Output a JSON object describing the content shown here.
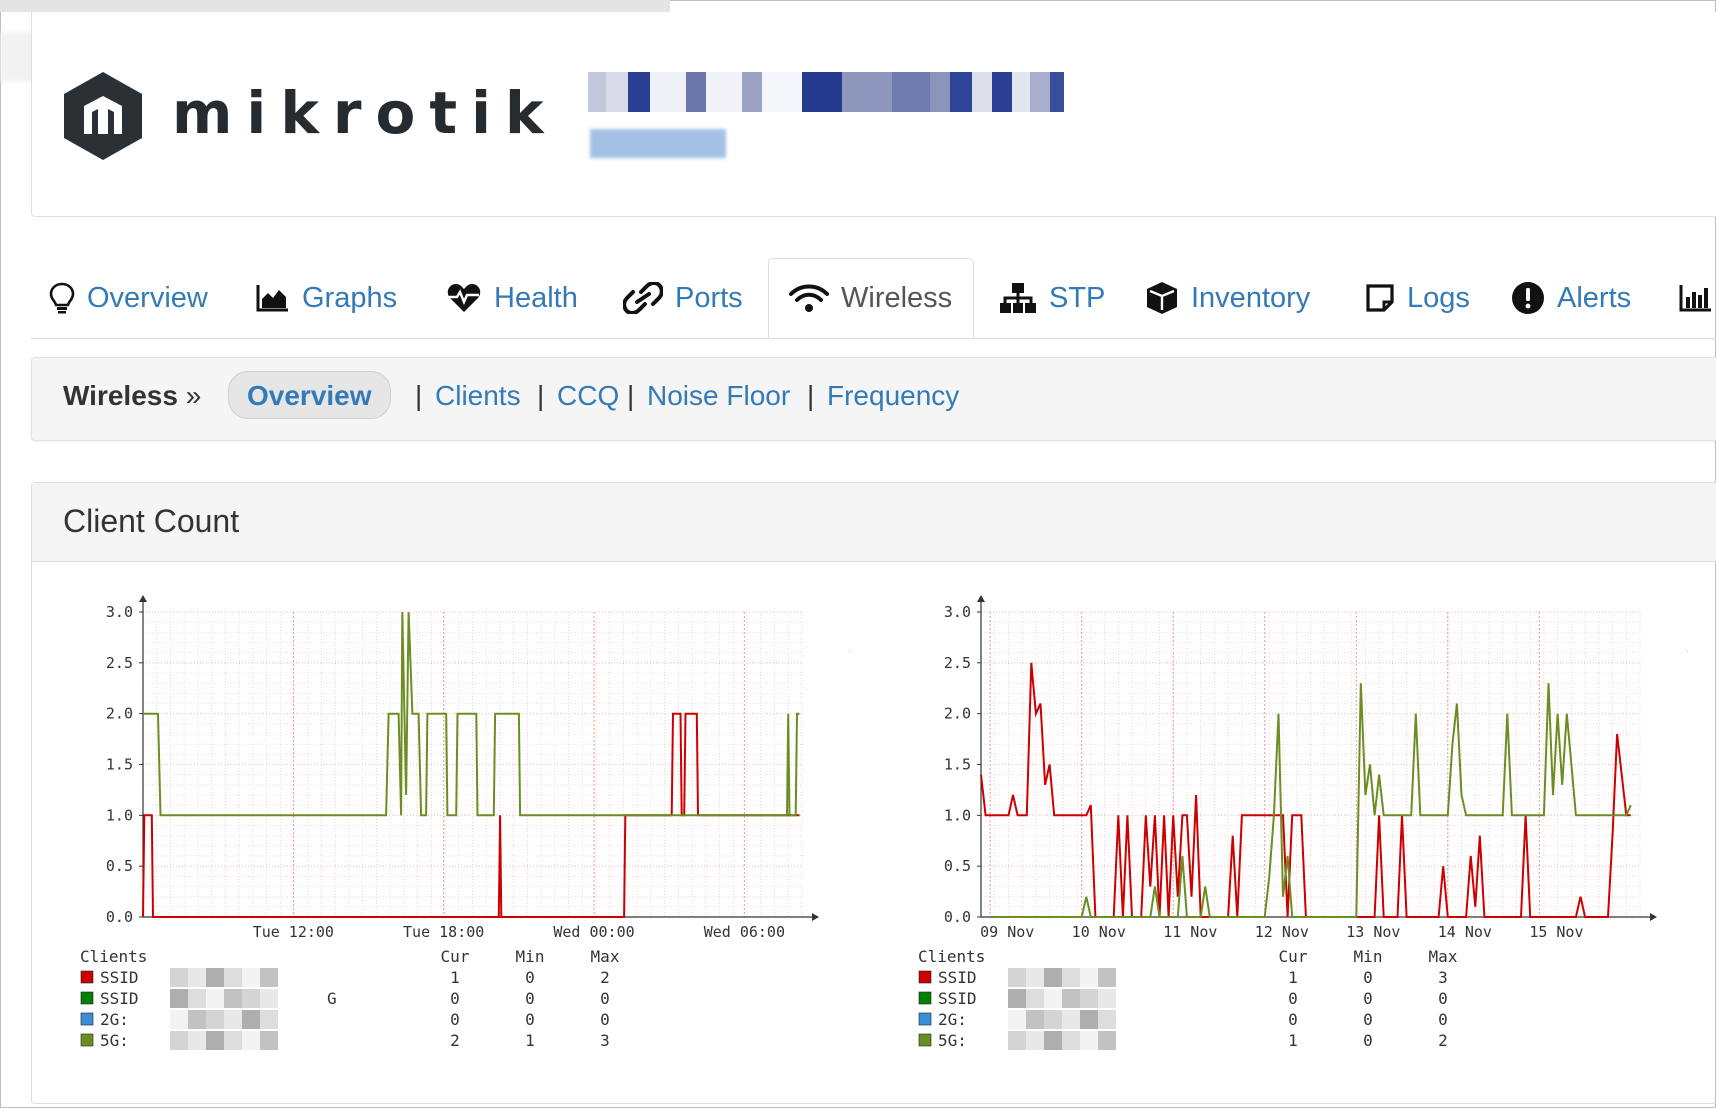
{
  "brand": {
    "name": "mikrotik"
  },
  "tabs": [
    {
      "label": "Overview",
      "icon": "lightbulb-icon"
    },
    {
      "label": "Graphs",
      "icon": "area-chart-icon"
    },
    {
      "label": "Health",
      "icon": "heartbeat-icon"
    },
    {
      "label": "Ports",
      "icon": "link-icon"
    },
    {
      "label": "Wireless",
      "icon": "wifi-icon",
      "active": true
    },
    {
      "label": "STP",
      "icon": "sitemap-icon"
    },
    {
      "label": "Inventory",
      "icon": "cube-icon"
    },
    {
      "label": "Logs",
      "icon": "sticky-note-icon"
    },
    {
      "label": "Alerts",
      "icon": "exclamation-circle-icon"
    }
  ],
  "subnav": {
    "section": "Wireless",
    "separator": "»",
    "active": "Overview",
    "pipe": "|",
    "links": [
      "Clients",
      "CCQ",
      "Noise Floor",
      "Frequency"
    ]
  },
  "panel": {
    "title": "Client Count"
  },
  "colors": {
    "link": "#337ab7",
    "ssid1": "#cc0000",
    "ssid2": "#008000",
    "band2g": "#3a8fd8",
    "band5g": "#6b8e23"
  },
  "graphs": [
    {
      "watermark": "RRDTOOL / TOBI OETIKER",
      "y_ticks": [
        "3.0",
        "2.5",
        "2.0",
        "1.5",
        "1.0",
        "0.5",
        "0.0"
      ],
      "x_ticks": [
        "Tue 12:00",
        "Tue 18:00",
        "Wed 00:00",
        "Wed 06:00"
      ],
      "legend": {
        "title": "Clients",
        "columns": [
          "Cur",
          "Min",
          "Max"
        ],
        "rows": [
          {
            "label": "SSID",
            "suffix": "",
            "cur": "1",
            "min": "0",
            "max": "2"
          },
          {
            "label": "SSID",
            "suffix": "G",
            "cur": "0",
            "min": "0",
            "max": "0"
          },
          {
            "label": "2G:",
            "suffix": "",
            "cur": "0",
            "min": "0",
            "max": "0"
          },
          {
            "label": "5G:",
            "suffix": "",
            "cur": "2",
            "min": "1",
            "max": "3"
          }
        ]
      }
    },
    {
      "watermark": "RRDTOOL / TOBI OETIKER",
      "y_ticks": [
        "3.0",
        "2.5",
        "2.0",
        "1.5",
        "1.0",
        "0.5",
        "0.0"
      ],
      "x_ticks": [
        "09 Nov",
        "10 Nov",
        "11 Nov",
        "12 Nov",
        "13 Nov",
        "14 Nov",
        "15 Nov"
      ],
      "legend": {
        "title": "Clients",
        "columns": [
          "Cur",
          "Min",
          "Max"
        ],
        "rows": [
          {
            "label": "SSID",
            "suffix": "",
            "cur": "1",
            "min": "0",
            "max": "3"
          },
          {
            "label": "SSID",
            "suffix": "",
            "cur": "0",
            "min": "0",
            "max": "0"
          },
          {
            "label": "2G:",
            "suffix": "",
            "cur": "0",
            "min": "0",
            "max": "0"
          },
          {
            "label": "5G:",
            "suffix": "",
            "cur": "1",
            "min": "0",
            "max": "2"
          }
        ]
      }
    }
  ],
  "chart_data": [
    {
      "type": "line",
      "x_unit": "hours since Tue 06:00",
      "xlim": [
        0,
        26.3
      ],
      "ylim": [
        0,
        3
      ],
      "grid": true,
      "series": [
        {
          "legend_index": 0,
          "color": "#cc0000",
          "points": [
            [
              0,
              0
            ],
            [
              0.05,
              1
            ],
            [
              0.35,
              1
            ],
            [
              0.4,
              0
            ],
            [
              14.2,
              0
            ],
            [
              14.25,
              1
            ],
            [
              14.3,
              0
            ],
            [
              19.2,
              0
            ],
            [
              19.25,
              1
            ],
            [
              20.25,
              1
            ],
            [
              20.3,
              1
            ],
            [
              21.1,
              1
            ],
            [
              21.15,
              2
            ],
            [
              21.45,
              2
            ],
            [
              21.5,
              1
            ],
            [
              21.6,
              1
            ],
            [
              21.65,
              2
            ],
            [
              22.1,
              2
            ],
            [
              22.15,
              1
            ],
            [
              26.2,
              1
            ]
          ]
        },
        {
          "legend_index": 3,
          "color": "#6b8e23",
          "points": [
            [
              0,
              2
            ],
            [
              0.6,
              2
            ],
            [
              0.7,
              1
            ],
            [
              9.7,
              1
            ],
            [
              9.8,
              2
            ],
            [
              10.2,
              2
            ],
            [
              10.3,
              1
            ],
            [
              10.35,
              3
            ],
            [
              10.5,
              1.2
            ],
            [
              10.6,
              3
            ],
            [
              10.75,
              2
            ],
            [
              11.0,
              2
            ],
            [
              11.1,
              1
            ],
            [
              11.3,
              1
            ],
            [
              11.35,
              2
            ],
            [
              12.1,
              2
            ],
            [
              12.15,
              1
            ],
            [
              12.5,
              1
            ],
            [
              12.55,
              2
            ],
            [
              13.3,
              2
            ],
            [
              13.35,
              1
            ],
            [
              14.0,
              1
            ],
            [
              14.05,
              2
            ],
            [
              15.0,
              2
            ],
            [
              15.05,
              1
            ],
            [
              25.7,
              1
            ],
            [
              25.75,
              2
            ],
            [
              25.8,
              1
            ],
            [
              26.05,
              1
            ],
            [
              26.1,
              2
            ],
            [
              26.2,
              2
            ]
          ]
        }
      ]
    },
    {
      "type": "line",
      "x_unit": "days since 09 Nov 00:00",
      "xlim": [
        -0.1,
        7.1
      ],
      "ylim": [
        0,
        3
      ],
      "grid": true,
      "series": [
        {
          "legend_index": 0,
          "color": "#cc0000",
          "points": [
            [
              -0.1,
              1.4
            ],
            [
              -0.05,
              1.0
            ],
            [
              0.2,
              1.0
            ],
            [
              0.25,
              1.2
            ],
            [
              0.3,
              1.0
            ],
            [
              0.4,
              1.0
            ],
            [
              0.45,
              2.5
            ],
            [
              0.5,
              2.0
            ],
            [
              0.55,
              2.1
            ],
            [
              0.6,
              1.3
            ],
            [
              0.65,
              1.5
            ],
            [
              0.7,
              1.0
            ],
            [
              1.05,
              1.0
            ],
            [
              1.1,
              1.1
            ],
            [
              1.15,
              0
            ],
            [
              1.35,
              0
            ],
            [
              1.4,
              1.0
            ],
            [
              1.45,
              0
            ],
            [
              1.5,
              1.0
            ],
            [
              1.55,
              0
            ],
            [
              1.65,
              0
            ],
            [
              1.7,
              1.0
            ],
            [
              1.75,
              0.3
            ],
            [
              1.8,
              1.0
            ],
            [
              1.85,
              0
            ],
            [
              1.9,
              1.0
            ],
            [
              1.95,
              0
            ],
            [
              2.0,
              1.0
            ],
            [
              2.05,
              0.2
            ],
            [
              2.1,
              1.0
            ],
            [
              2.15,
              1.0
            ],
            [
              2.2,
              0.2
            ],
            [
              2.25,
              1.2
            ],
            [
              2.3,
              0
            ],
            [
              2.6,
              0
            ],
            [
              2.65,
              0.8
            ],
            [
              2.7,
              0
            ],
            [
              2.75,
              1.0
            ],
            [
              3.2,
              1.0
            ],
            [
              3.25,
              0
            ],
            [
              3.3,
              1.0
            ],
            [
              3.4,
              1.0
            ],
            [
              3.45,
              0
            ],
            [
              4.2,
              0
            ],
            [
              4.25,
              1.0
            ],
            [
              4.3,
              0
            ],
            [
              4.45,
              0
            ],
            [
              4.5,
              1.0
            ],
            [
              4.55,
              0
            ],
            [
              4.9,
              0
            ],
            [
              4.95,
              0.5
            ],
            [
              5.0,
              0
            ],
            [
              5.2,
              0
            ],
            [
              5.25,
              0.6
            ],
            [
              5.3,
              0.1
            ],
            [
              5.35,
              0.8
            ],
            [
              5.4,
              0
            ],
            [
              5.8,
              0
            ],
            [
              5.85,
              1.0
            ],
            [
              5.9,
              0
            ],
            [
              6.4,
              0
            ],
            [
              6.45,
              0.2
            ],
            [
              6.5,
              0
            ],
            [
              6.75,
              0
            ],
            [
              6.8,
              0.8
            ],
            [
              6.85,
              1.8
            ],
            [
              6.9,
              1.4
            ],
            [
              6.95,
              1.0
            ],
            [
              7.0,
              1.0
            ]
          ]
        },
        {
          "legend_index": 3,
          "color": "#6b8e23",
          "points": [
            [
              0,
              0
            ],
            [
              1.0,
              0
            ],
            [
              1.05,
              0.2
            ],
            [
              1.1,
              0
            ],
            [
              1.75,
              0
            ],
            [
              1.8,
              0.3
            ],
            [
              1.85,
              0
            ],
            [
              2.05,
              0
            ],
            [
              2.1,
              0.6
            ],
            [
              2.15,
              0
            ],
            [
              2.3,
              0
            ],
            [
              2.35,
              0.3
            ],
            [
              2.4,
              0
            ],
            [
              3.0,
              0
            ],
            [
              3.05,
              0.4
            ],
            [
              3.1,
              1.0
            ],
            [
              3.15,
              2.0
            ],
            [
              3.2,
              0.2
            ],
            [
              3.25,
              0.6
            ],
            [
              3.3,
              0
            ],
            [
              4.0,
              0
            ],
            [
              4.05,
              2.3
            ],
            [
              4.1,
              1.2
            ],
            [
              4.15,
              1.5
            ],
            [
              4.2,
              1.0
            ],
            [
              4.25,
              1.4
            ],
            [
              4.3,
              1.0
            ],
            [
              4.6,
              1.0
            ],
            [
              4.65,
              2.0
            ],
            [
              4.7,
              1.0
            ],
            [
              5.0,
              1.0
            ],
            [
              5.05,
              1.7
            ],
            [
              5.1,
              2.1
            ],
            [
              5.15,
              1.2
            ],
            [
              5.2,
              1.0
            ],
            [
              5.6,
              1.0
            ],
            [
              5.65,
              2.0
            ],
            [
              5.7,
              1.0
            ],
            [
              6.05,
              1.0
            ],
            [
              6.1,
              2.3
            ],
            [
              6.15,
              1.2
            ],
            [
              6.2,
              2.0
            ],
            [
              6.25,
              1.3
            ],
            [
              6.3,
              2.0
            ],
            [
              6.35,
              1.5
            ],
            [
              6.4,
              1.0
            ],
            [
              6.95,
              1.0
            ],
            [
              7.0,
              1.1
            ]
          ]
        }
      ]
    }
  ]
}
